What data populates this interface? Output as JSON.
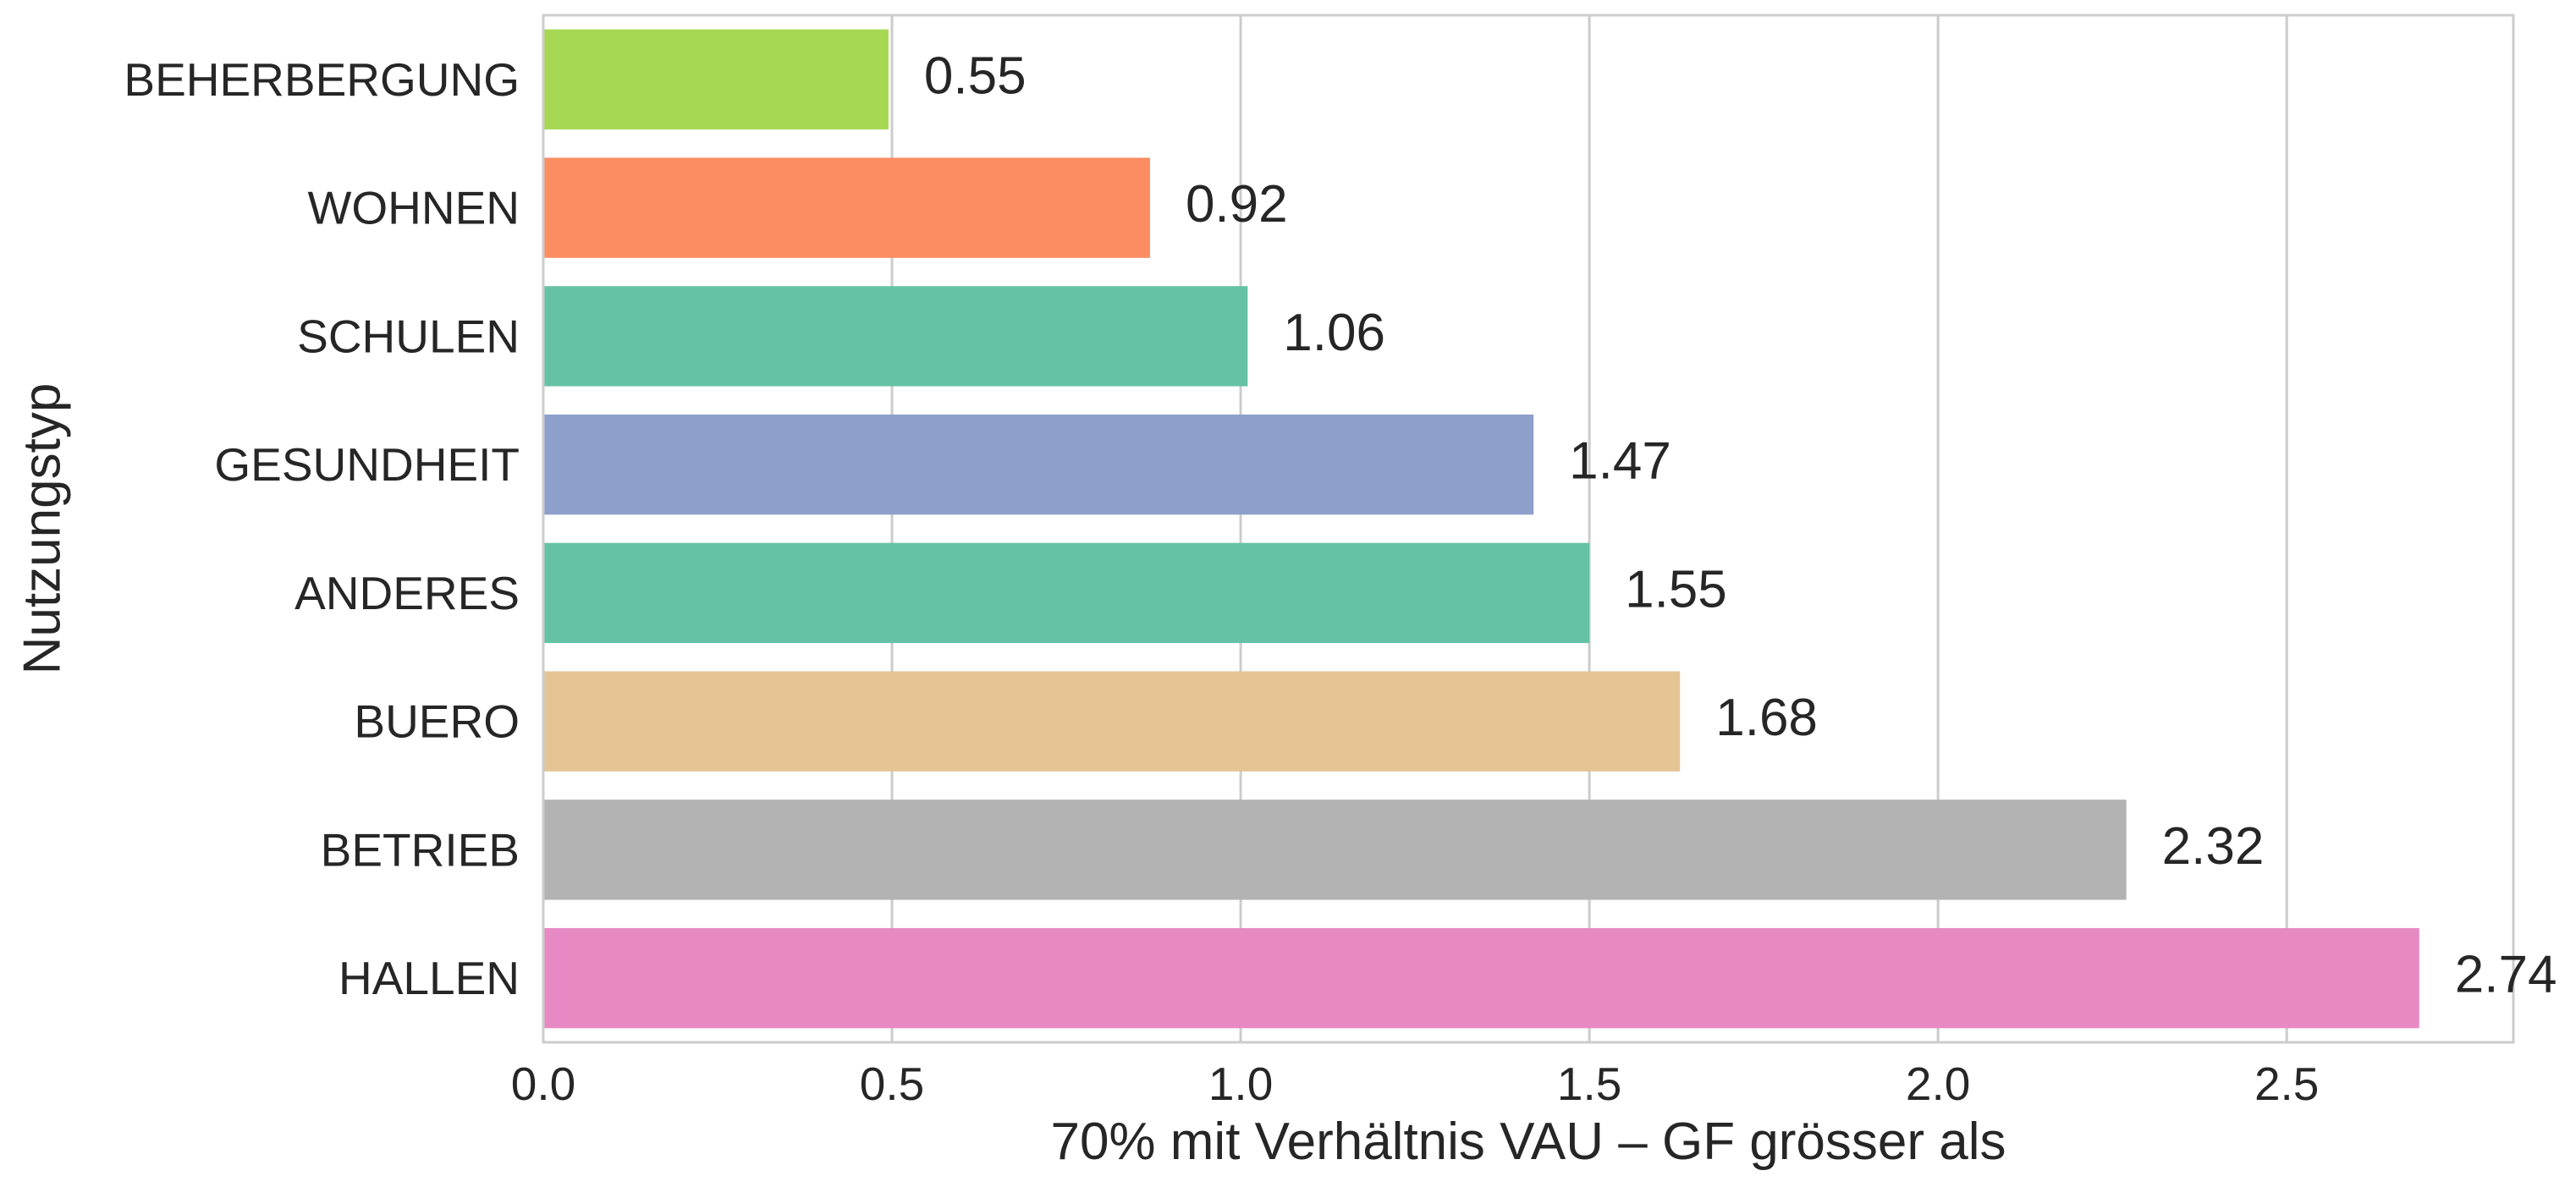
{
  "chart_data": {
    "type": "bar",
    "orientation": "horizontal",
    "categories": [
      "BEHERBERGUNG",
      "WOHNEN",
      "SCHULEN",
      "GESUNDHEIT",
      "ANDERES",
      "BUERO",
      "BETRIEB",
      "HALLEN"
    ],
    "values": [
      0.495,
      0.87,
      1.01,
      1.42,
      1.5,
      1.63,
      2.27,
      2.69
    ],
    "value_labels": [
      "0.55",
      "0.92",
      "1.06",
      "1.47",
      "1.55",
      "1.68",
      "2.32",
      "2.74"
    ],
    "colors": [
      "#a6d854",
      "#fc8d62",
      "#66c2a5",
      "#8da0cb",
      "#66c2a5",
      "#e5c494",
      "#b3b3b3",
      "#e78ac3"
    ],
    "xlabel": "70% mit Verhältnis VAU – GF grösser als",
    "ylabel": "Nutzungstyp",
    "xlim": [
      0,
      2.825
    ],
    "xticks": [
      "0.0",
      "0.5",
      "1.0",
      "1.5",
      "2.0",
      "2.5"
    ],
    "grid": "vertical"
  }
}
